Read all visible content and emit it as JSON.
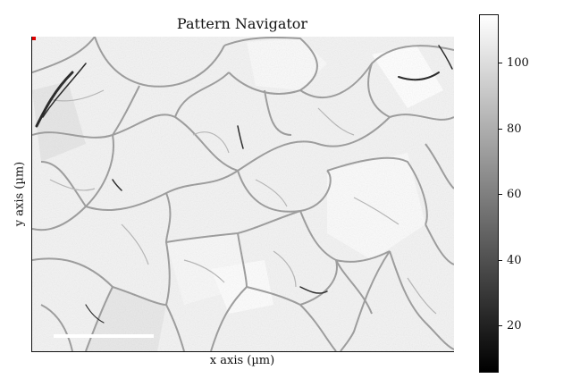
{
  "figure": {
    "title": "Pattern Navigator",
    "xlabel": "x axis (µm)",
    "ylabel": "y axis (µm)"
  },
  "colorbar": {
    "ticks": [
      "20",
      "40",
      "60",
      "80",
      "100"
    ],
    "tick_values": [
      20,
      40,
      60,
      80,
      100
    ],
    "range": [
      6,
      115
    ]
  },
  "colors": {
    "marker": "#e00000",
    "grain_boundary": "#9a9a9a",
    "background": "#f4f4f4"
  }
}
